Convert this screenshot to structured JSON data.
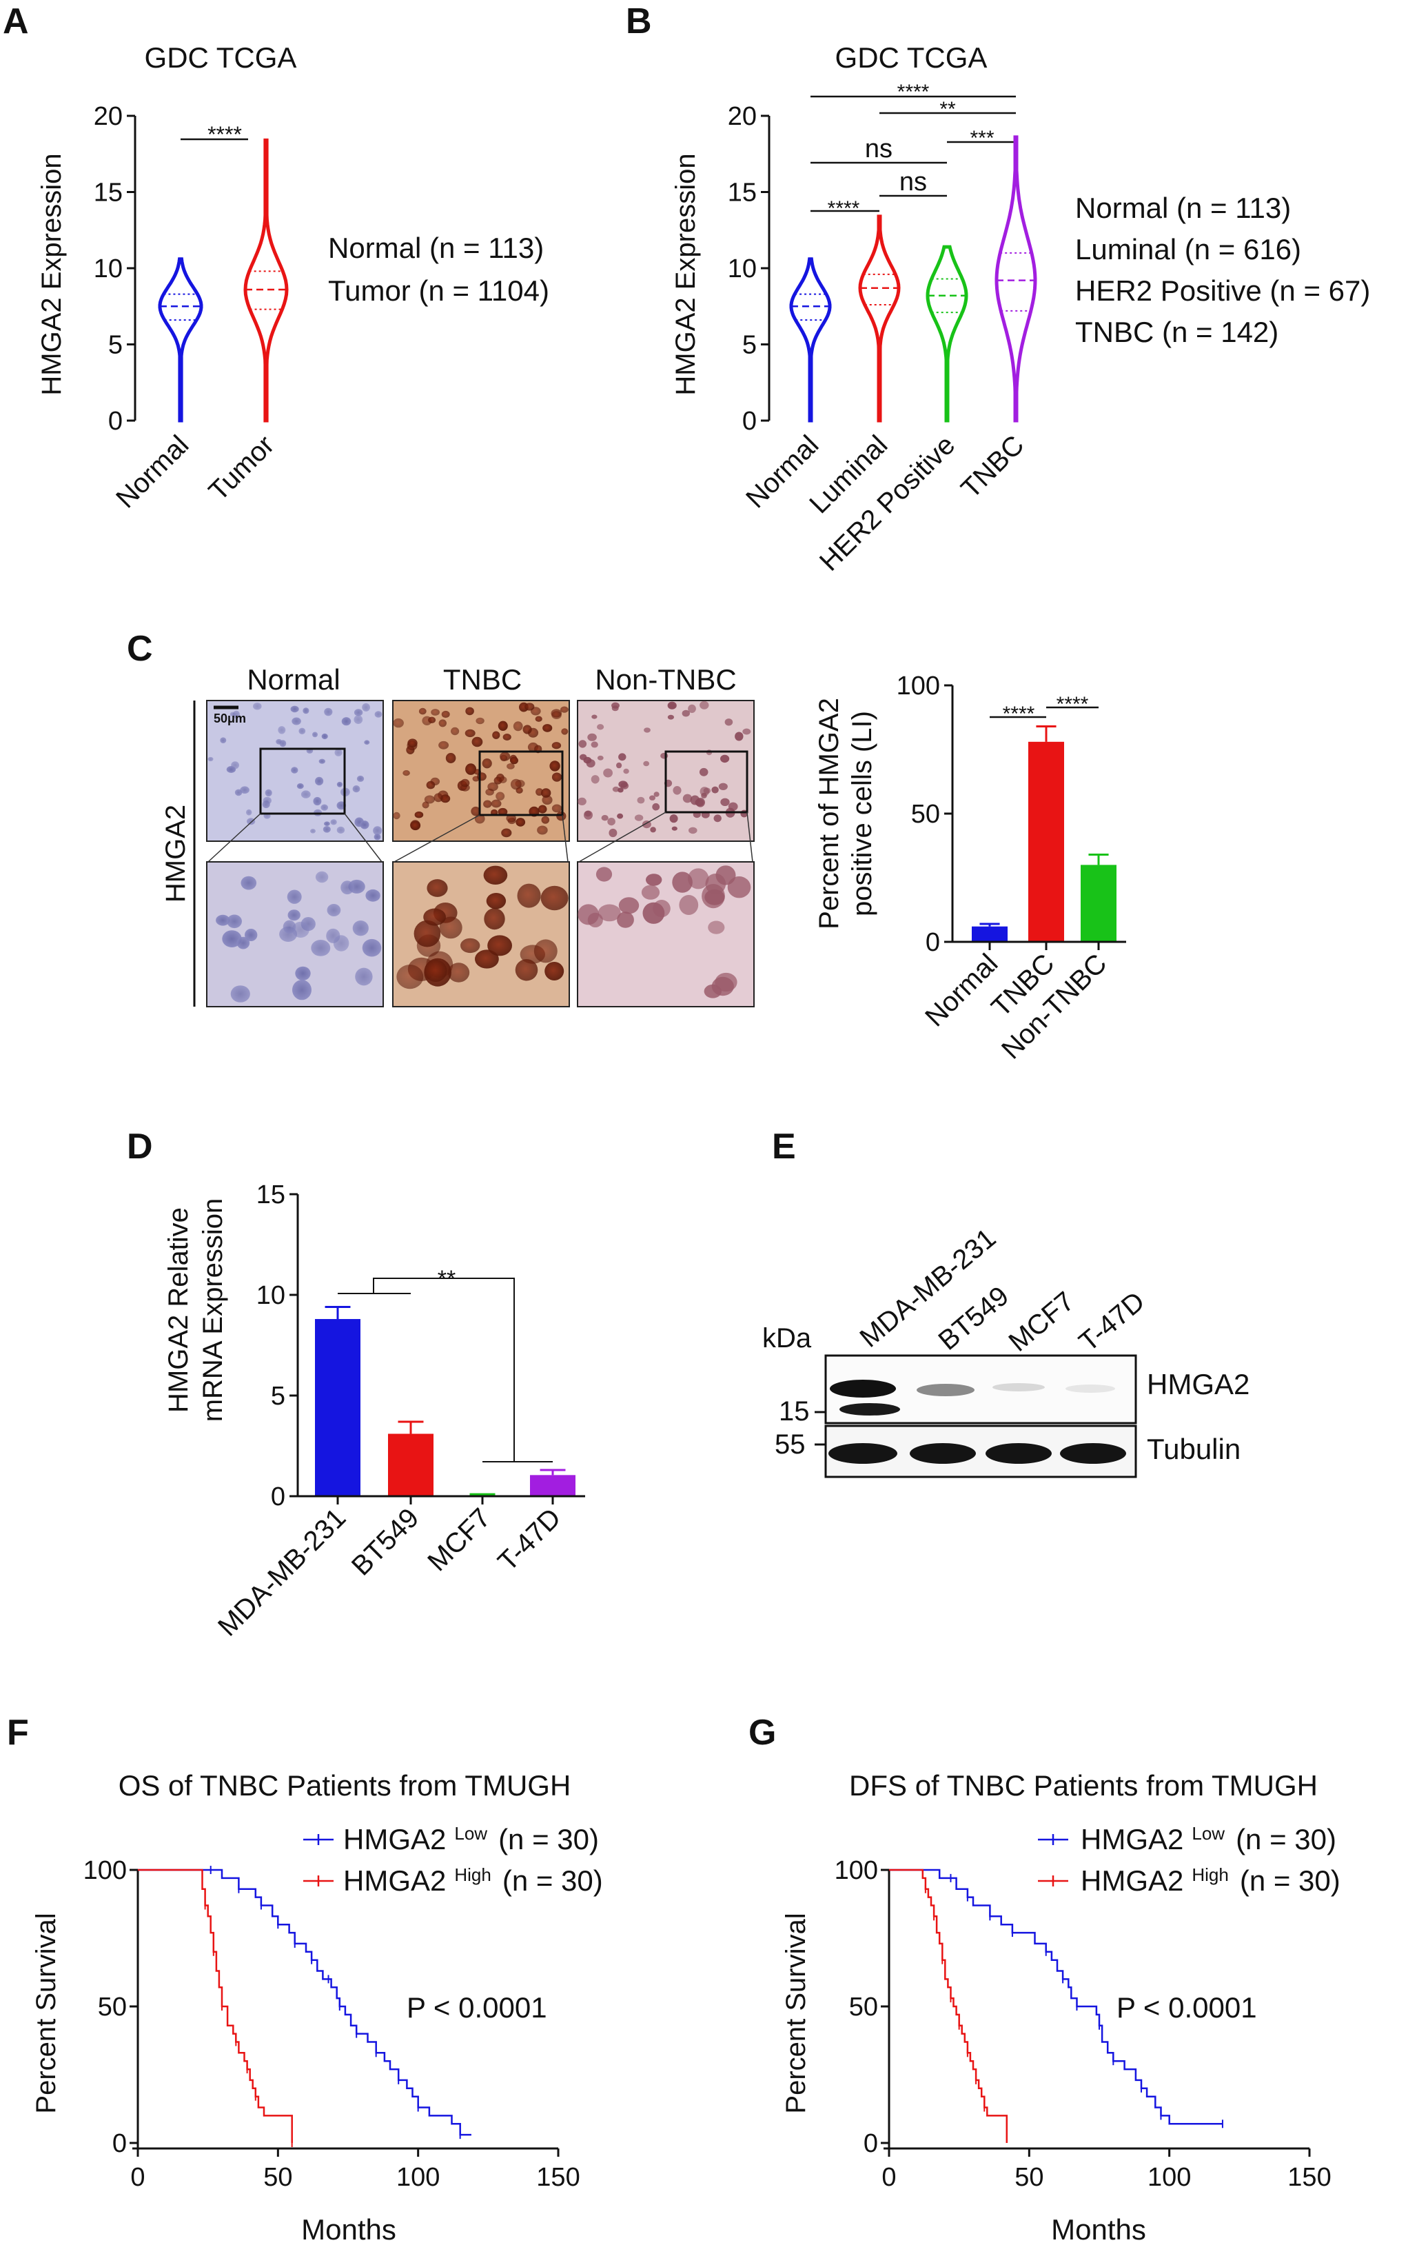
{
  "panels": {
    "A": {
      "letter": "A",
      "title": "GDC TCGA",
      "ylabel": "HMGA2 Expression",
      "ylim": [
        0,
        20
      ],
      "yticks": [
        "0",
        "5",
        "10",
        "15",
        "20"
      ],
      "sig": "****",
      "legend": [
        "Normal (n = 113)",
        "Tumor (n = 1104)"
      ]
    },
    "B": {
      "letter": "B",
      "title": "GDC TCGA",
      "ylabel": "HMGA2 Expression",
      "yticks": [
        "0",
        "5",
        "10",
        "15",
        "20"
      ],
      "sig": [
        "****",
        "ns",
        "ns",
        "****",
        "**",
        "***"
      ],
      "legend": [
        "Normal (n = 113)",
        "Luminal (n = 616)",
        "HER2 Positive (n = 67)",
        "TNBC (n = 142)"
      ]
    },
    "C": {
      "letter": "C",
      "col_headers": [
        "Normal",
        "TNBC",
        "Non-TNBC"
      ],
      "row_label": "HMGA2",
      "scale_bar": "50μm",
      "ylabel_line1": "Percent of HMGA2",
      "ylabel_line2": "positive cells (LI)",
      "yticks": [
        "0",
        "50",
        "100"
      ],
      "sig": [
        "****",
        "****"
      ]
    },
    "D": {
      "letter": "D",
      "ylabel_line1": "HMGA2 Relative",
      "ylabel_line2": "mRNA Expression",
      "yticks": [
        "0",
        "5",
        "10",
        "15"
      ],
      "sig": "**"
    },
    "E": {
      "letter": "E",
      "kda": "kDa",
      "lanes": [
        "MDA-MB-231",
        "BT549",
        "MCF7",
        "T-47D"
      ],
      "markers": [
        "15",
        "55"
      ],
      "bands": [
        "HMGA2",
        "Tubulin"
      ]
    },
    "F": {
      "letter": "F",
      "title": "OS of TNBC Patients from TMUGH",
      "pvalue": "P < 0.0001",
      "xlabel": "Months",
      "ylabel": "Percent Survival"
    },
    "G": {
      "letter": "G",
      "title": "DFS of TNBC Patients from TMUGH",
      "pvalue": "P < 0.0001",
      "xlabel": "Months",
      "ylabel": "Percent Survival"
    }
  },
  "km_legend": {
    "gene": "HMGA2",
    "low_sup": "Low",
    "high_sup": "High",
    "n": "(n = 30)"
  },
  "km_xticks": [
    "0",
    "50",
    "100",
    "150"
  ],
  "km_yticks": [
    "0",
    "50",
    "100"
  ],
  "colors": {
    "blue": "#1515e0",
    "red": "#e81414",
    "green": "#18c218",
    "purple": "#a21ee0"
  },
  "chart_data": [
    {
      "panel": "A",
      "type": "violin",
      "categories": [
        "Normal",
        "Tumor"
      ],
      "ylim": [
        0,
        20
      ],
      "series": [
        {
          "name": "Normal (n = 113)",
          "min": 0,
          "q1": 6.6,
          "median": 7.5,
          "q3": 8.3,
          "max": 10.6,
          "color": "#1515e0"
        },
        {
          "name": "Tumor (n = 1104)",
          "min": 0,
          "q1": 7.3,
          "median": 8.6,
          "q3": 9.8,
          "max": 18.4,
          "color": "#e81414"
        }
      ]
    },
    {
      "panel": "B",
      "type": "violin",
      "categories": [
        "Normal",
        "Luminal",
        "HER2 Positive",
        "TNBC"
      ],
      "ylim": [
        0,
        20
      ],
      "series": [
        {
          "name": "Normal (n = 113)",
          "min": 0,
          "q1": 6.6,
          "median": 7.5,
          "q3": 8.3,
          "max": 10.6,
          "color": "#1515e0"
        },
        {
          "name": "Luminal (n = 616)",
          "min": 0,
          "q1": 7.6,
          "median": 8.7,
          "q3": 9.6,
          "max": 13.4,
          "color": "#e81414"
        },
        {
          "name": "HER2 Positive (n = 67)",
          "min": 0,
          "q1": 7.1,
          "median": 8.2,
          "q3": 9.3,
          "max": 11.4,
          "color": "#18c218"
        },
        {
          "name": "TNBC (n = 142)",
          "min": 0,
          "q1": 7.2,
          "median": 9.2,
          "q3": 11.0,
          "max": 18.6,
          "color": "#a21ee0"
        }
      ]
    },
    {
      "panel": "C",
      "type": "bar",
      "categories": [
        "Normal",
        "TNBC",
        "Non-TNBC"
      ],
      "values": [
        6,
        78,
        30
      ],
      "errors": [
        1,
        6,
        4
      ],
      "ylim": [
        0,
        100
      ]
    },
    {
      "panel": "D",
      "type": "bar",
      "categories": [
        "MDA-MB-231",
        "BT549",
        "MCF7",
        "T-47D"
      ],
      "values": [
        8.8,
        3.1,
        0.05,
        1.05
      ],
      "errors": [
        0.6,
        0.6,
        0.05,
        0.25
      ],
      "ylim": [
        0,
        15
      ]
    },
    {
      "panel": "F",
      "type": "line",
      "xlim": [
        0,
        150
      ],
      "ylim": [
        0,
        100
      ],
      "series": [
        {
          "name": "HMGA2 Low (n = 30)",
          "color": "#1515e0",
          "points": [
            [
              0,
              100
            ],
            [
              17,
              100
            ],
            [
              22,
              100
            ],
            [
              26,
              100
            ],
            [
              30,
              97
            ],
            [
              34,
              97
            ],
            [
              36,
              93
            ],
            [
              40,
              93
            ],
            [
              42,
              90
            ],
            [
              44,
              87
            ],
            [
              46,
              87
            ],
            [
              48,
              83
            ],
            [
              50,
              80
            ],
            [
              52,
              80
            ],
            [
              54,
              77
            ],
            [
              56,
              73
            ],
            [
              58,
              73
            ],
            [
              60,
              70
            ],
            [
              62,
              67
            ],
            [
              64,
              63
            ],
            [
              66,
              60
            ],
            [
              68,
              60
            ],
            [
              69,
              57
            ],
            [
              71,
              53
            ],
            [
              72,
              50
            ],
            [
              74,
              47
            ],
            [
              76,
              43
            ],
            [
              78,
              40
            ],
            [
              80,
              40
            ],
            [
              82,
              37
            ],
            [
              85,
              33
            ],
            [
              88,
              30
            ],
            [
              90,
              27
            ],
            [
              93,
              23
            ],
            [
              96,
              20
            ],
            [
              98,
              17
            ],
            [
              100,
              13
            ],
            [
              104,
              10
            ],
            [
              112,
              7
            ],
            [
              115,
              3
            ],
            [
              119,
              3
            ]
          ]
        },
        {
          "name": "HMGA2 High (n = 30)",
          "color": "#e81414",
          "points": [
            [
              0,
              100
            ],
            [
              22,
              100
            ],
            [
              23,
              93
            ],
            [
              24,
              87
            ],
            [
              25,
              83
            ],
            [
              26,
              77
            ],
            [
              27,
              70
            ],
            [
              28,
              63
            ],
            [
              29,
              57
            ],
            [
              30,
              50
            ],
            [
              32,
              43
            ],
            [
              34,
              40
            ],
            [
              35,
              37
            ],
            [
              36,
              33
            ],
            [
              38,
              30
            ],
            [
              39,
              27
            ],
            [
              40,
              23
            ],
            [
              41,
              20
            ],
            [
              42,
              17
            ],
            [
              43,
              13
            ],
            [
              45,
              10
            ],
            [
              55,
              0
            ]
          ]
        }
      ]
    },
    {
      "panel": "G",
      "type": "line",
      "xlim": [
        0,
        150
      ],
      "ylim": [
        0,
        100
      ],
      "series": [
        {
          "name": "HMGA2 Low (n = 30)",
          "color": "#1515e0",
          "points": [
            [
              0,
              100
            ],
            [
              14,
              100
            ],
            [
              18,
              97
            ],
            [
              22,
              97
            ],
            [
              24,
              93
            ],
            [
              27,
              93
            ],
            [
              28,
              90
            ],
            [
              30,
              87
            ],
            [
              34,
              87
            ],
            [
              36,
              83
            ],
            [
              40,
              80
            ],
            [
              42,
              80
            ],
            [
              44,
              77
            ],
            [
              50,
              77
            ],
            [
              52,
              73
            ],
            [
              56,
              70
            ],
            [
              58,
              67
            ],
            [
              60,
              63
            ],
            [
              62,
              60
            ],
            [
              64,
              57
            ],
            [
              65,
              53
            ],
            [
              67,
              50
            ],
            [
              72,
              50
            ],
            [
              74,
              47
            ],
            [
              75,
              43
            ],
            [
              76,
              37
            ],
            [
              78,
              33
            ],
            [
              80,
              30
            ],
            [
              84,
              27
            ],
            [
              88,
              23
            ],
            [
              90,
              20
            ],
            [
              92,
              17
            ],
            [
              95,
              13
            ],
            [
              97,
              10
            ],
            [
              100,
              7
            ],
            [
              110,
              7
            ],
            [
              119,
              7
            ]
          ]
        },
        {
          "name": "HMGA2 High (n = 30)",
          "color": "#e81414",
          "points": [
            [
              0,
              100
            ],
            [
              10,
              100
            ],
            [
              12,
              97
            ],
            [
              13,
              93
            ],
            [
              14,
              90
            ],
            [
              15,
              87
            ],
            [
              16,
              83
            ],
            [
              17,
              77
            ],
            [
              18,
              73
            ],
            [
              19,
              67
            ],
            [
              20,
              60
            ],
            [
              21,
              57
            ],
            [
              22,
              53
            ],
            [
              23,
              50
            ],
            [
              24,
              47
            ],
            [
              25,
              43
            ],
            [
              26,
              40
            ],
            [
              27,
              37
            ],
            [
              28,
              33
            ],
            [
              29,
              30
            ],
            [
              30,
              27
            ],
            [
              31,
              23
            ],
            [
              32,
              20
            ],
            [
              33,
              17
            ],
            [
              34,
              13
            ],
            [
              35,
              10
            ],
            [
              42,
              0
            ]
          ]
        }
      ]
    }
  ]
}
